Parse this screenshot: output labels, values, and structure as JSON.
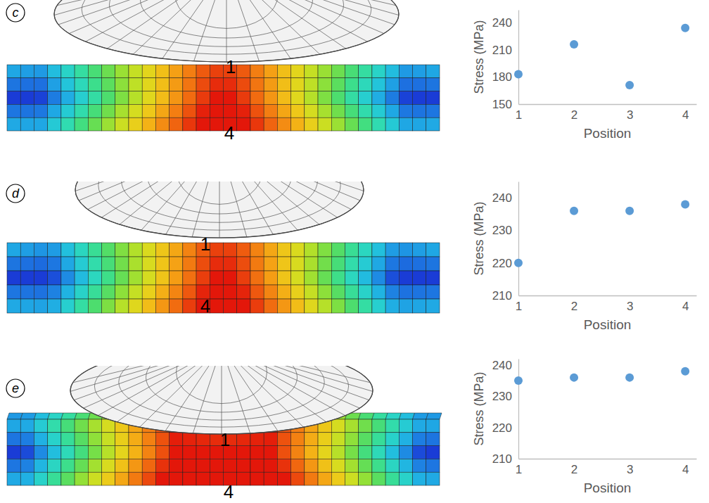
{
  "chart_data": [
    {
      "type": "scatter",
      "panel_label": "c",
      "annotations": [
        "1",
        "4"
      ],
      "x": [
        1,
        2,
        3,
        4
      ],
      "values": [
        183,
        216,
        171,
        234
      ],
      "color": "#5b9bd5",
      "marker": "circle",
      "xlim": [
        1,
        4.2
      ],
      "xticks": [
        1,
        2,
        3,
        4
      ],
      "ylim": [
        150,
        254
      ],
      "yticks": [
        150,
        180,
        210,
        240
      ],
      "x_label": "Position",
      "y_label": "Stress (MPa)",
      "grid": false
    },
    {
      "type": "scatter",
      "panel_label": "d",
      "annotations": [
        "1",
        "4"
      ],
      "x": [
        1,
        2,
        3,
        4
      ],
      "values": [
        220,
        236,
        236,
        238
      ],
      "color": "#5b9bd5",
      "marker": "circle",
      "xlim": [
        1,
        4.2
      ],
      "xticks": [
        1,
        2,
        3,
        4
      ],
      "ylim": [
        210,
        245
      ],
      "yticks": [
        210,
        220,
        230,
        240
      ],
      "x_label": "Position",
      "y_label": "Stress (MPa)",
      "grid": false
    },
    {
      "type": "scatter",
      "panel_label": "e",
      "annotations": [
        "1",
        "4"
      ],
      "x": [
        1,
        2,
        3,
        4
      ],
      "values": [
        235,
        236,
        236,
        238
      ],
      "color": "#5b9bd5",
      "marker": "circle",
      "xlim": [
        1,
        4.2
      ],
      "xticks": [
        1,
        2,
        3,
        4
      ],
      "ylim": [
        210,
        242
      ],
      "yticks": [
        210,
        220,
        230,
        240
      ],
      "x_label": "Position",
      "y_label": "Stress (MPa)",
      "grid": false
    }
  ]
}
